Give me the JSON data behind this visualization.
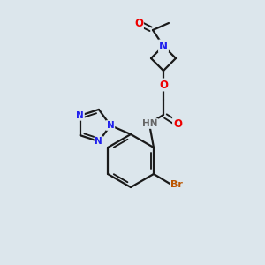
{
  "background_color": "#dce6ec",
  "bond_color": "#1a1a1a",
  "N_color": "#2020ee",
  "O_color": "#ee0000",
  "Br_color": "#bb5500",
  "H_color": "#666666",
  "figsize": [
    3.0,
    3.0
  ],
  "dpi": 100,
  "xlim": [
    0,
    300
  ],
  "ylim": [
    0,
    300
  ]
}
